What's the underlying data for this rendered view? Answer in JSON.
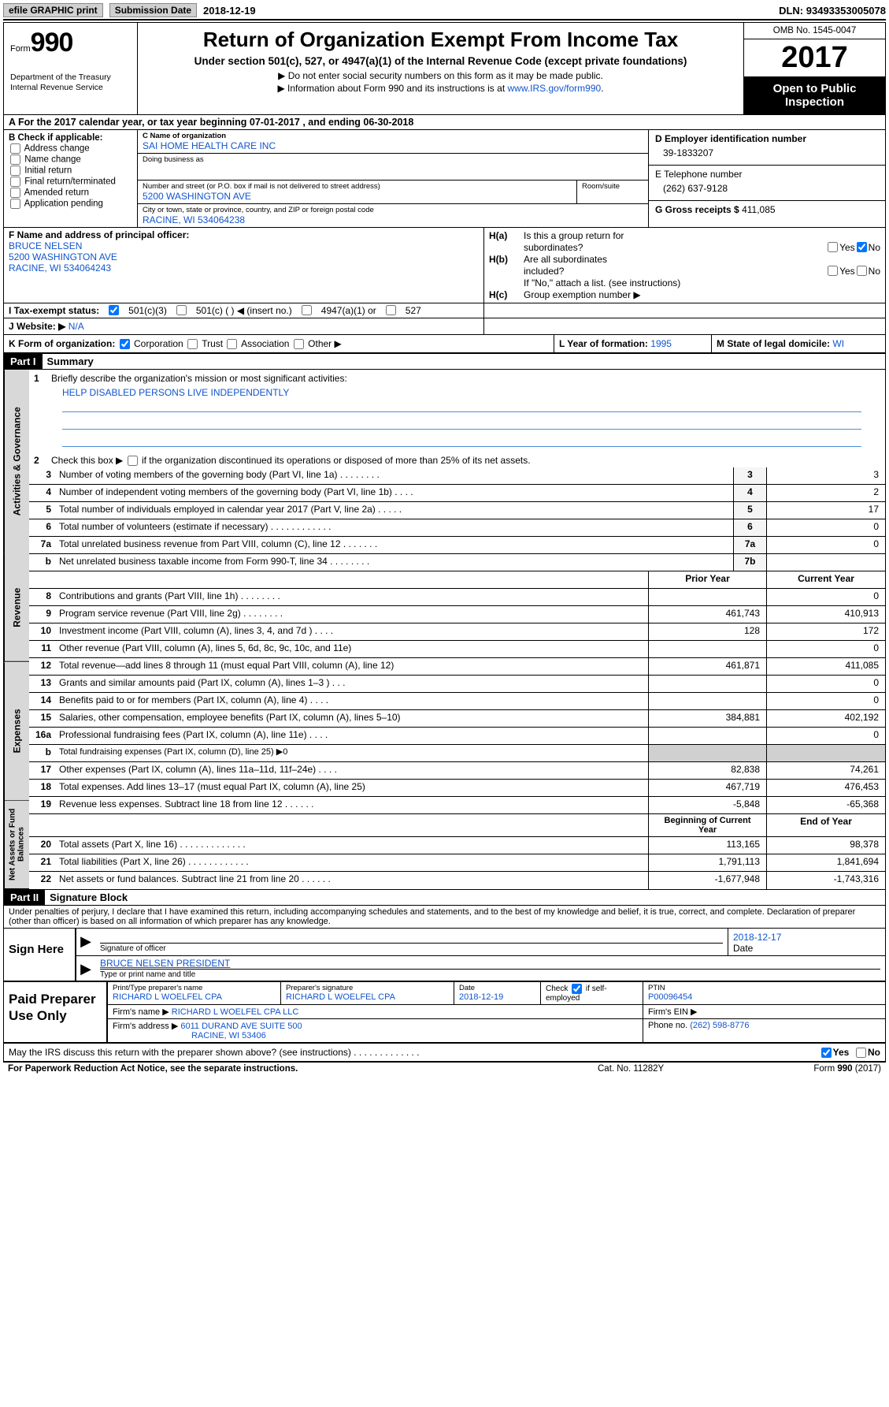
{
  "top": {
    "efile_btn": "efile GRAPHIC print",
    "submission_label": "Submission Date",
    "submission_date": "2018-12-19",
    "dln_label": "DLN:",
    "dln": "93493353005078"
  },
  "header": {
    "form_label": "Form",
    "form_number": "990",
    "dept1": "Department of the Treasury",
    "dept2": "Internal Revenue Service",
    "title": "Return of Organization Exempt From Income Tax",
    "subtitle": "Under section 501(c), 527, or 4947(a)(1) of the Internal Revenue Code (except private foundations)",
    "note1": "▶ Do not enter social security numbers on this form as it may be made public.",
    "note2_pre": "▶ Information about Form 990 and its instructions is at ",
    "note2_link": "www.IRS.gov/form990",
    "omb": "OMB No. 1545-0047",
    "year": "2017",
    "open1": "Open to Public",
    "open2": "Inspection"
  },
  "lineA": "A  For the 2017 calendar year, or tax year beginning 07-01-2017   , and ending 06-30-2018",
  "boxB": {
    "label": "B Check if applicable:",
    "opts": [
      "Address change",
      "Name change",
      "Initial return",
      "Final return/terminated",
      "Amended return",
      "Application pending"
    ]
  },
  "boxC": {
    "name_label": "C Name of organization",
    "name": "SAI HOME HEALTH CARE INC",
    "dba_label": "Doing business as",
    "dba": "",
    "street_label": "Number and street (or P.O. box if mail is not delivered to street address)",
    "room_label": "Room/suite",
    "street": "5200 WASHINGTON AVE",
    "city_label": "City or town, state or province, country, and ZIP or foreign postal code",
    "city": "RACINE, WI  534064238"
  },
  "boxD": {
    "label": "D Employer identification number",
    "ein": "39-1833207"
  },
  "boxE": {
    "label": "E Telephone number",
    "phone": "(262) 637-9128"
  },
  "boxG": {
    "label": "G Gross receipts $",
    "amount": "411,085"
  },
  "boxF": {
    "label": "F  Name and address of principal officer:",
    "line1": "BRUCE NELSEN",
    "line2": "5200 WASHINGTON AVE",
    "line3": "RACINE, WI  534064243"
  },
  "boxH": {
    "a_label": "H(a)",
    "a_text1": "Is this a group return for",
    "a_text2": "subordinates?",
    "b_label": "H(b)",
    "b_text1": "Are all subordinates",
    "b_text2": "included?",
    "note": "If \"No,\" attach a list. (see instructions)",
    "c_label": "H(c)",
    "c_text": "Group exemption number ▶",
    "yes": "Yes",
    "no": "No"
  },
  "boxI": {
    "label": "I  Tax-exempt status:",
    "o1": "501(c)(3)",
    "o2": "501(c) (   ) ◀ (insert no.)",
    "o3": "4947(a)(1) or",
    "o4": "527"
  },
  "boxJ": {
    "label": "J  Website: ▶",
    "value": "N/A"
  },
  "boxK": {
    "label": "K Form of organization:",
    "o1": "Corporation",
    "o2": "Trust",
    "o3": "Association",
    "o4": "Other ▶"
  },
  "boxL": {
    "label": "L Year of formation:",
    "value": "1995"
  },
  "boxM": {
    "label": "M State of legal domicile:",
    "value": "WI"
  },
  "parts": {
    "part1_hdr": "Part I",
    "part1_title": "Summary",
    "part2_hdr": "Part II",
    "part2_title": "Signature Block"
  },
  "summary": {
    "tab1": "Activities & Governance",
    "tab2": "Revenue",
    "tab3": "Expenses",
    "tab4": "Net Assets or Fund Balances",
    "line1": "Briefly describe the organization's mission or most significant activities:",
    "mission": "HELP DISABLED PERSONS LIVE INDEPENDENTLY",
    "line2": "Check this box ▶         if the organization discontinued its operations or disposed of more than 25% of its net assets.",
    "rows_gov": [
      {
        "n": "3",
        "desc": "Number of voting members of the governing body (Part VI, line 1a)   .    .    .    .    .    .    .    .",
        "box": "3",
        "v": "3"
      },
      {
        "n": "4",
        "desc": "Number of independent voting members of the governing body (Part VI, line 1b)    .    .    .    .",
        "box": "4",
        "v": "2"
      },
      {
        "n": "5",
        "desc": "Total number of individuals employed in calendar year 2017 (Part V, line 2a)    .    .    .    .    .",
        "box": "5",
        "v": "17"
      },
      {
        "n": "6",
        "desc": "Total number of volunteers (estimate if necessary)    .    .    .    .    .    .    .    .    .    .    .    .",
        "box": "6",
        "v": "0"
      },
      {
        "n": "7a",
        "desc": "Total unrelated business revenue from Part VIII, column (C), line 12    .    .    .    .    .    .    .",
        "box": "7a",
        "v": "0"
      },
      {
        "n": "b",
        "desc": "Net unrelated business taxable income from Form 990-T, line 34    .    .    .    .    .    .    .    .",
        "box": "7b",
        "v": ""
      }
    ],
    "col_prior": "Prior Year",
    "col_current": "Current Year",
    "rows_rev": [
      {
        "n": "8",
        "desc": "Contributions and grants (Part VIII, line 1h)    .    .    .    .    .    .    .    .",
        "p": "",
        "c": "0"
      },
      {
        "n": "9",
        "desc": "Program service revenue (Part VIII, line 2g)    .    .    .    .    .    .    .    .",
        "p": "461,743",
        "c": "410,913"
      },
      {
        "n": "10",
        "desc": "Investment income (Part VIII, column (A), lines 3, 4, and 7d )   .    .    .    .",
        "p": "128",
        "c": "172"
      },
      {
        "n": "11",
        "desc": "Other revenue (Part VIII, column (A), lines 5, 6d, 8c, 9c, 10c, and 11e)",
        "p": "",
        "c": "0"
      },
      {
        "n": "12",
        "desc": "Total revenue—add lines 8 through 11 (must equal Part VIII, column (A), line 12)",
        "p": "461,871",
        "c": "411,085"
      }
    ],
    "rows_exp": [
      {
        "n": "13",
        "desc": "Grants and similar amounts paid (Part IX, column (A), lines 1–3 )   .    .    .",
        "p": "",
        "c": "0"
      },
      {
        "n": "14",
        "desc": "Benefits paid to or for members (Part IX, column (A), line 4)   .    .    .    .",
        "p": "",
        "c": "0"
      },
      {
        "n": "15",
        "desc": "Salaries, other compensation, employee benefits (Part IX, column (A), lines 5–10)",
        "p": "384,881",
        "c": "402,192"
      },
      {
        "n": "16a",
        "desc": "Professional fundraising fees (Part IX, column (A), line 11e)   .    .    .    .",
        "p": "",
        "c": "0"
      },
      {
        "n": "b",
        "desc": "Total fundraising expenses (Part IX, column (D), line 25) ▶0",
        "p": "shade",
        "c": "shade"
      },
      {
        "n": "17",
        "desc": "Other expenses (Part IX, column (A), lines 11a–11d, 11f–24e)    .    .    .    .",
        "p": "82,838",
        "c": "74,261"
      },
      {
        "n": "18",
        "desc": "Total expenses. Add lines 13–17 (must equal Part IX, column (A), line 25)",
        "p": "467,719",
        "c": "476,453"
      },
      {
        "n": "19",
        "desc": "Revenue less expenses. Subtract line 18 from line 12    .    .    .    .    .    .",
        "p": "-5,848",
        "c": "-65,368"
      }
    ],
    "col_bcy": "Beginning of Current Year",
    "col_eoy": "End of Year",
    "rows_net": [
      {
        "n": "20",
        "desc": "Total assets (Part X, line 16)   .    .    .    .    .    .    .    .    .    .    .    .    .",
        "p": "113,165",
        "c": "98,378"
      },
      {
        "n": "21",
        "desc": "Total liabilities (Part X, line 26)   .    .    .    .    .    .    .    .    .    .    .    .",
        "p": "1,791,113",
        "c": "1,841,694"
      },
      {
        "n": "22",
        "desc": "Net assets or fund balances. Subtract line 21 from line 20 .    .    .    .    .    .",
        "p": "-1,677,948",
        "c": "-1,743,316"
      }
    ]
  },
  "sig": {
    "intro": "Under penalties of perjury, I declare that I have examined this return, including accompanying schedules and statements, and to the best of my knowledge and belief, it is true, correct, and complete. Declaration of preparer (other than officer) is based on all information of which preparer has any knowledge.",
    "sign_here": "Sign Here",
    "sig_officer_lbl": "Signature of officer",
    "date_lbl": "Date",
    "sig_date": "2018-12-17",
    "officer_name": "BRUCE NELSEN PRESIDENT",
    "name_lbl": "Type or print name and title"
  },
  "preparer": {
    "left": "Paid Preparer Use Only",
    "name_lbl": "Print/Type preparer's name",
    "name": "RICHARD L WOELFEL CPA",
    "sig_lbl": "Preparer's signature",
    "sig": "RICHARD L WOELFEL CPA",
    "date_lbl": "Date",
    "date": "2018-12-19",
    "check_lbl": "Check        if self-employed",
    "ptin_lbl": "PTIN",
    "ptin": "P00096454",
    "firm_name_lbl": "Firm's name      ▶",
    "firm_name": "RICHARD L WOELFEL CPA LLC",
    "firm_ein_lbl": "Firm's EIN ▶",
    "firm_addr_lbl": "Firm's address ▶",
    "firm_addr1": "6011 DURAND AVE SUITE 500",
    "firm_addr2": "RACINE, WI  53406",
    "phone_lbl": "Phone no.",
    "phone": "(262) 598-8776"
  },
  "footer": {
    "discuss": "May the IRS discuss this return with the preparer shown above? (see instructions)    .    .    .    .    .    .    .    .    .    .    .    .    .",
    "yes": "Yes",
    "no": "No",
    "pra": "For Paperwork Reduction Act Notice, see the separate instructions.",
    "cat": "Cat. No. 11282Y",
    "form": "Form 990 (2017)"
  }
}
